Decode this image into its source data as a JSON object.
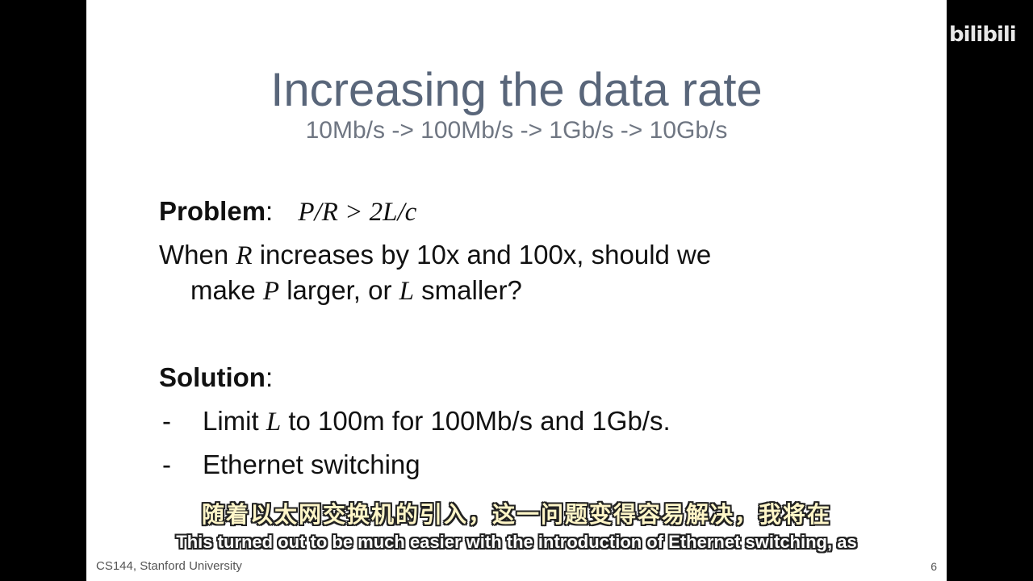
{
  "slide": {
    "title": "Increasing the data rate",
    "subtitle": "10Mb/s -> 100Mb/s -> 1Gb/s -> 10Gb/s",
    "problem_label": "Problem",
    "problem_colon": ":",
    "problem_formula": "P/R > 2L/c",
    "line1_a": "When ",
    "line1_var": "R",
    "line1_b": " increases by 10x and 100x, should we",
    "line2_a": "make ",
    "line2_var1": "P",
    "line2_b": " larger, or ",
    "line2_var2": "L",
    "line2_c": " smaller?",
    "solution_label": "Solution",
    "solution_colon": ":",
    "bullets": [
      {
        "dash": "-",
        "text_a": "Limit ",
        "var": "L",
        "text_b": " to 100m for 100Mb/s and 1Gb/s."
      },
      {
        "dash": "-",
        "text_a": "Ethernet switching"
      }
    ],
    "footer": "CS144, Stanford University",
    "page_number": "6"
  },
  "overlay": {
    "logo": "bilibili",
    "subtitle_cn": "随着以太网交换机的引入，这一问题变得容易解决，我将在",
    "subtitle_en": "This turned out to be much easier with the introduction of Ethernet switching, as"
  }
}
